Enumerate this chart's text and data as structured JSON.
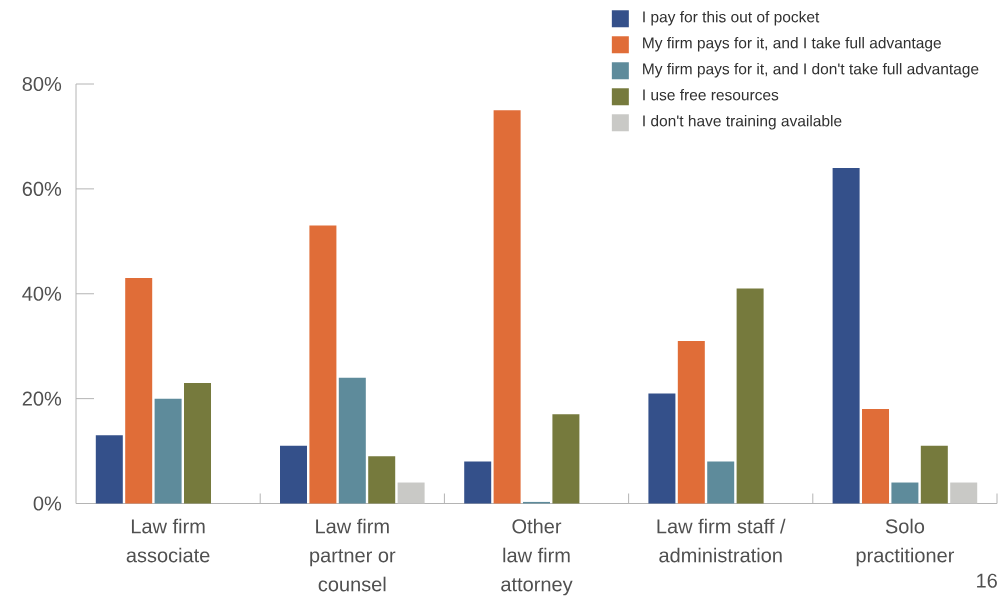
{
  "chart_data": {
    "type": "bar",
    "categories": [
      "Law firm\nassociate",
      "Law firm\npartner or\ncounsel",
      "Other\nlaw firm\nattorney",
      "Law firm staff /\nadministration",
      "Solo\npractitioner"
    ],
    "series": [
      {
        "name": "I pay for this out of pocket",
        "color": "#34508a",
        "values": [
          13,
          11,
          8,
          21,
          64
        ]
      },
      {
        "name": "My firm pays for it, and I take full advantage",
        "color": "#e06d38",
        "values": [
          43,
          53,
          75,
          31,
          18
        ]
      },
      {
        "name": "My firm pays for it, and I don't take full advantage",
        "color": "#5e8b9b",
        "values": [
          20,
          24,
          0.3,
          8,
          4
        ]
      },
      {
        "name": "I use free resources",
        "color": "#767a3d",
        "values": [
          23,
          9,
          17,
          41,
          11
        ]
      },
      {
        "name": "I don't have training available",
        "color": "#c9c9c6",
        "values": [
          null,
          4,
          null,
          null,
          4
        ]
      }
    ],
    "ylim": [
      0,
      80
    ],
    "yticks": [
      {
        "value": 0,
        "label": "0%"
      },
      {
        "value": 20,
        "label": "20%"
      },
      {
        "value": 40,
        "label": "40%"
      },
      {
        "value": 60,
        "label": "60%"
      },
      {
        "value": 80,
        "label": "80%"
      }
    ],
    "legend": "top right",
    "annotations": [
      "16"
    ]
  }
}
